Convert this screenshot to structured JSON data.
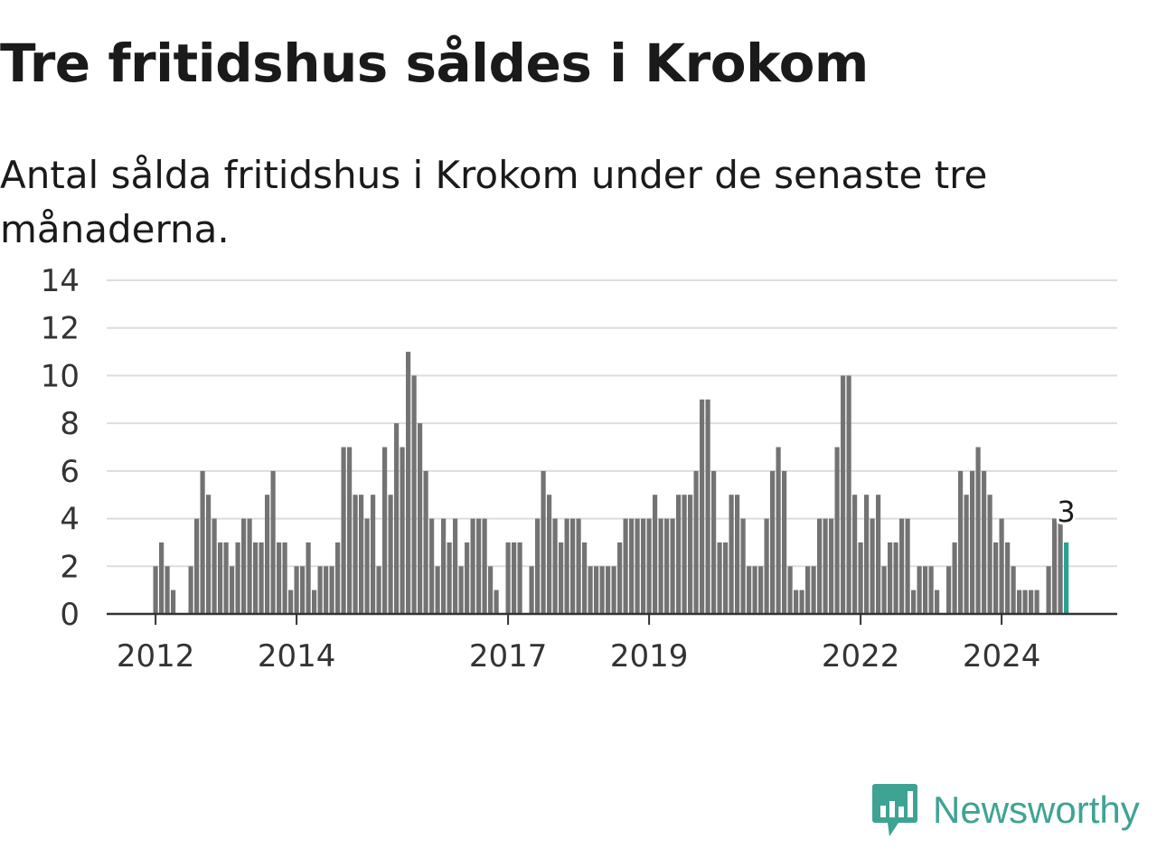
{
  "title": "Tre fritidshus såldes i Krokom",
  "subtitle": "Antal sålda fritidshus i Krokom under de senaste tre månaderna.",
  "brand": {
    "name": "Newsworthy",
    "icon": "newsworthy-logo-icon",
    "color": "#3fa394"
  },
  "chart_data": {
    "type": "bar",
    "title": "Tre fritidshus såldes i Krokom",
    "subtitle": "Antal sålda fritidshus i Krokom under de senaste tre månaderna.",
    "y_ticks": [
      0,
      2,
      4,
      6,
      8,
      10,
      12,
      14
    ],
    "ylim": [
      0,
      14
    ],
    "x_ticks": [
      "2012",
      "2014",
      "2017",
      "2019",
      "2022",
      "2024"
    ],
    "grid": true,
    "bar_color": "#737373",
    "highlight_color": "#2ba193",
    "highlight_label": "3",
    "series": [
      {
        "values": [
          2,
          3,
          2,
          1,
          0,
          0,
          2,
          4,
          6,
          5,
          4,
          3,
          3,
          2,
          3,
          4,
          4,
          3,
          3,
          5,
          6,
          3,
          3,
          1,
          2,
          2,
          3,
          1,
          2,
          2,
          2,
          3,
          7,
          7,
          5,
          5,
          4,
          5,
          2,
          7,
          5,
          8,
          7,
          11,
          10,
          8,
          6,
          4,
          2,
          4,
          3,
          4,
          2,
          3,
          4,
          4,
          4,
          2,
          1,
          0,
          3,
          3,
          3,
          0,
          2,
          4,
          6,
          5,
          4,
          3,
          4,
          4,
          4,
          3,
          2,
          2,
          2,
          2,
          2,
          3,
          4,
          4,
          4,
          4,
          4,
          5,
          4,
          4,
          4,
          5,
          5,
          5,
          6,
          9,
          9,
          6,
          3,
          3,
          5,
          5,
          4,
          2,
          2,
          2,
          4,
          6,
          7,
          6,
          2,
          1,
          1,
          2,
          2,
          4,
          4,
          4,
          7,
          10,
          10,
          5,
          3,
          5,
          4,
          5,
          2,
          3,
          3,
          4,
          4,
          1,
          2,
          2,
          2,
          1,
          0,
          2,
          3,
          6,
          5,
          6,
          7,
          6,
          5,
          3,
          4,
          3,
          2,
          1,
          1,
          1,
          1,
          0,
          2,
          4,
          4,
          3
        ]
      }
    ]
  }
}
